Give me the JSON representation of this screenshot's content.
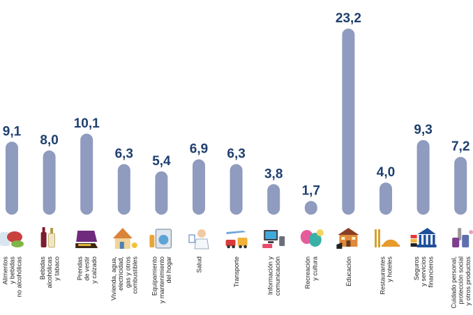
{
  "colors": {
    "bar": "#8f9bbf",
    "value_text": "#1f3f6e",
    "label_text": "#1f1f1f"
  },
  "chart_data": {
    "type": "bar",
    "title": "",
    "xlabel": "",
    "ylabel": "",
    "grid": false,
    "legend": "none",
    "ylim": [
      0,
      23.2
    ],
    "categories": [
      "Alimentos y bebidas no alcohólicas",
      "Bebidas alcohólicas y tabaco",
      "Prendas de vestir y calzado",
      "Vivienda, agua, electricidad, gas y otros combustibles",
      "Equipamiento y mantenimiento del hogar",
      "Salud",
      "Transporte",
      "Información y comunicación",
      "Recreación y cultura",
      "Educación",
      "Restaurantes y hoteles",
      "Seguros y servicios financieros",
      "Cuidado personal, protección social y otros productos"
    ],
    "category_lines": [
      [
        "Alimentos",
        "y bebidas",
        "no alcohólicas"
      ],
      [
        "Bebidas",
        "alcohólicas",
        "y tabaco"
      ],
      [
        "Prendas",
        "de vestir",
        "y calzado"
      ],
      [
        "Vivienda, agua,",
        "electricidad,",
        "gas y otros",
        "combustibles"
      ],
      [
        "Equipamiento",
        "y mantenimiento",
        "del hogar"
      ],
      [
        "Salud"
      ],
      [
        "Transporte"
      ],
      [
        "Información y",
        "comunicación"
      ],
      [
        "Recreación",
        "y cultura"
      ],
      [
        "Educación"
      ],
      [
        "Restaurantes",
        "y hoteles"
      ],
      [
        "Seguros",
        "y servicios",
        "financieros"
      ],
      [
        "Cuidado personal,",
        "protección social",
        "y otros productos"
      ]
    ],
    "values": [
      9.1,
      8.0,
      10.1,
      6.3,
      5.4,
      6.9,
      6.3,
      3.8,
      1.7,
      23.2,
      4.0,
      9.3,
      7.2
    ],
    "value_labels": [
      "9,1",
      "8,0",
      "10,1",
      "6,3",
      "5,4",
      "6,9",
      "6,3",
      "3,8",
      "1,7",
      "23,2",
      "4,0",
      "9,3",
      "7,2"
    ],
    "icons": [
      "food-icon",
      "wine-bottle-icon",
      "sweater-shoe-icon",
      "house-icon",
      "washing-machine-icon",
      "doctor-icon",
      "vehicles-icon",
      "computer-icon",
      "theater-masks-icon",
      "school-icon",
      "restaurant-icon",
      "bank-icon",
      "personal-care-icon"
    ]
  }
}
